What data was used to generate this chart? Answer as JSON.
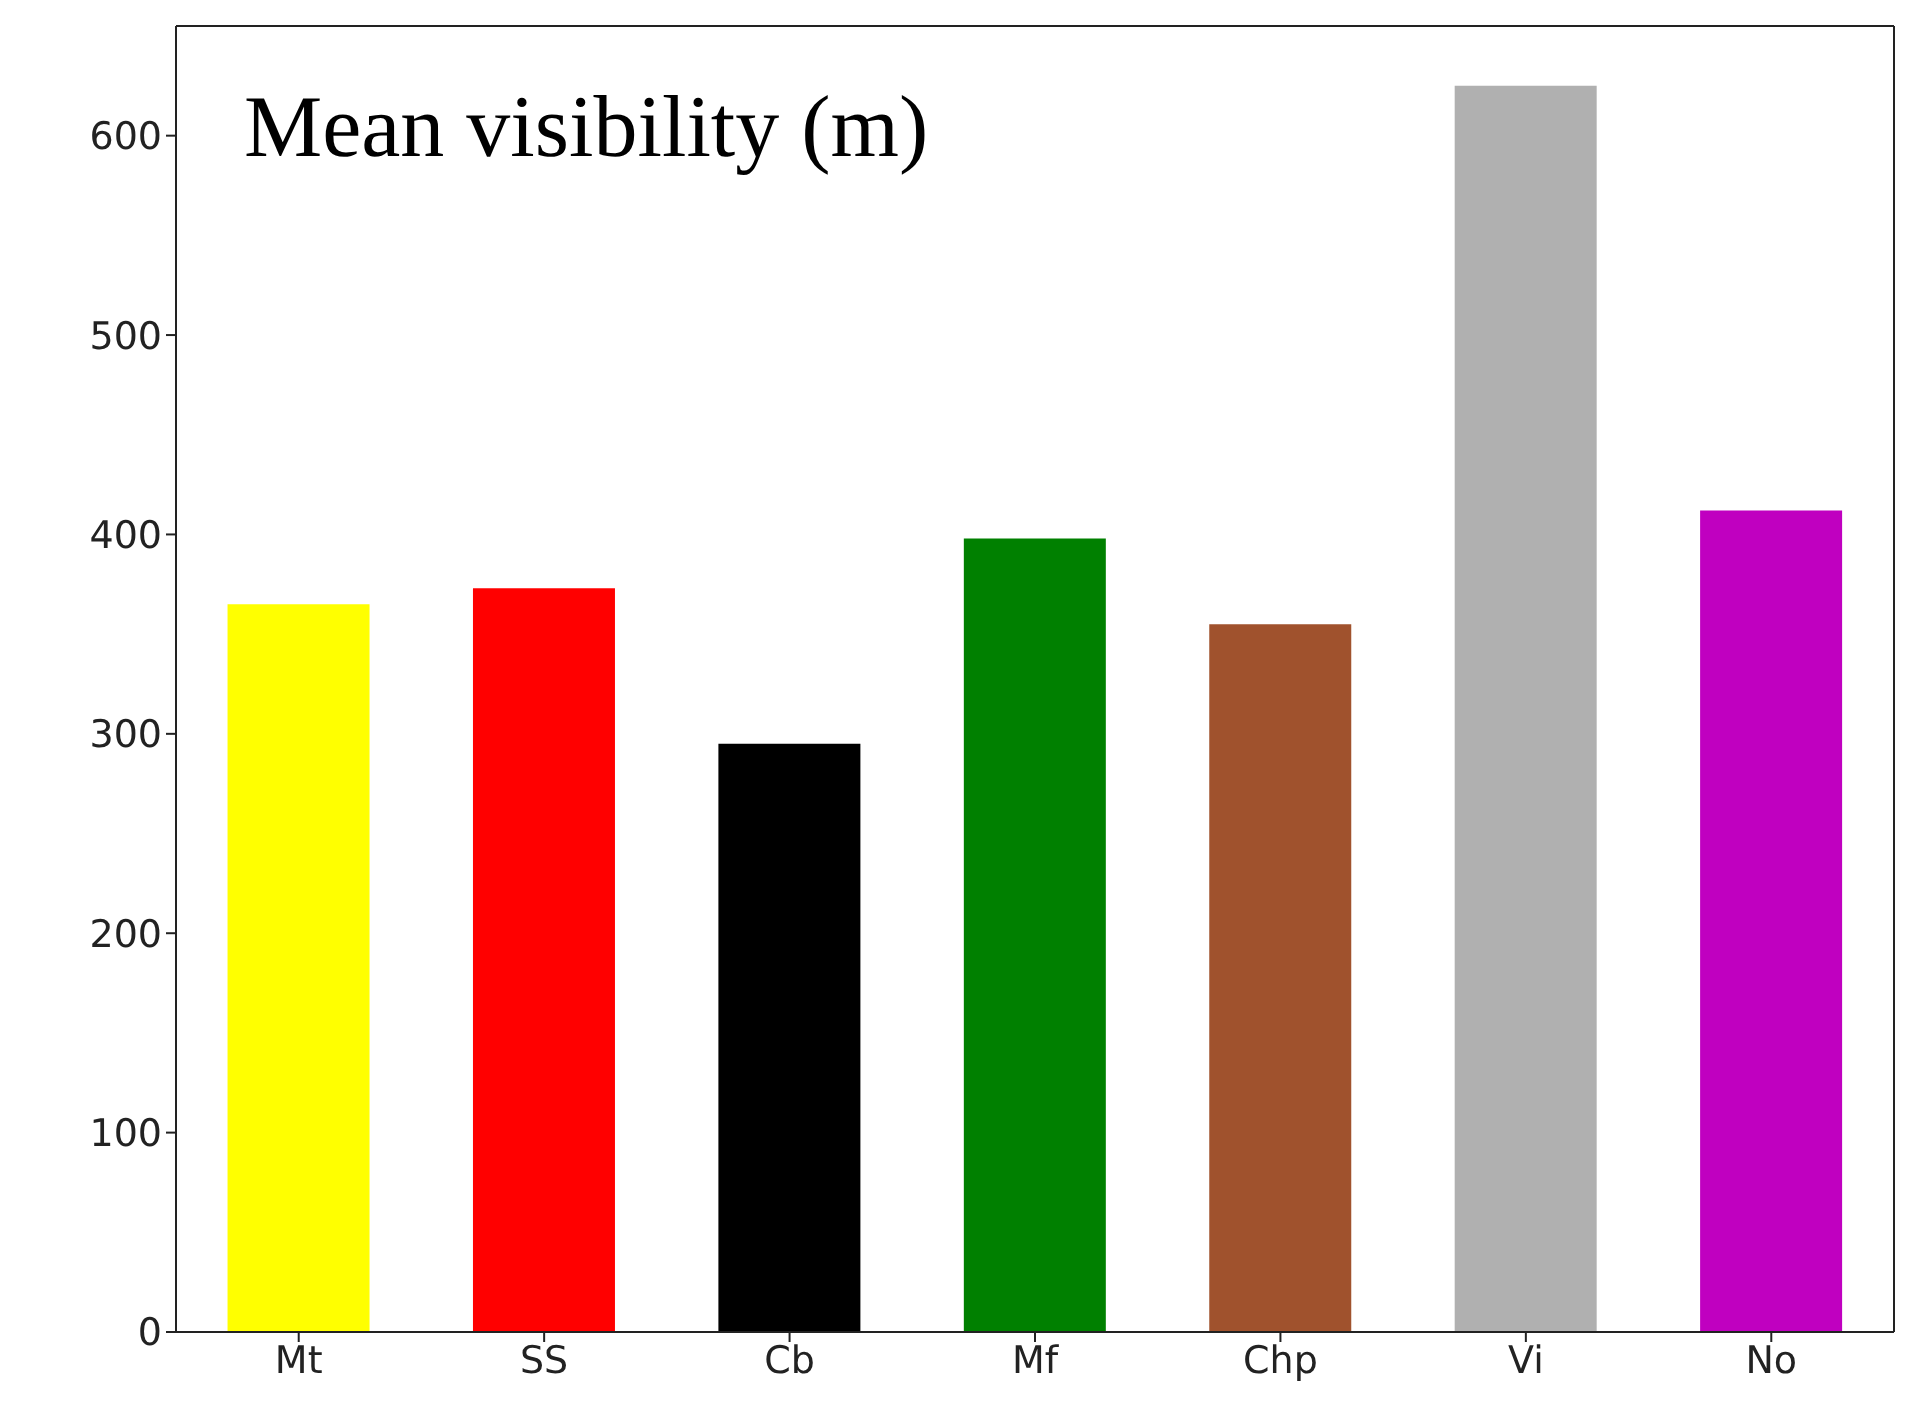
{
  "chart_data": {
    "type": "bar",
    "title": "Mean visibility (m)",
    "categories": [
      "Mt",
      "SS",
      "Cb",
      "Mf",
      "Chp",
      "Vi",
      "No"
    ],
    "values": [
      365,
      373,
      295,
      398,
      355,
      625,
      412
    ],
    "colors": [
      "#ffff00",
      "#ff0000",
      "#000000",
      "#008000",
      "#a0522d",
      "#b0b0b0",
      "#c000c0"
    ],
    "ylim": [
      0,
      655
    ],
    "yticks": [
      0,
      100,
      200,
      300,
      400,
      500,
      600
    ],
    "grid": false
  }
}
